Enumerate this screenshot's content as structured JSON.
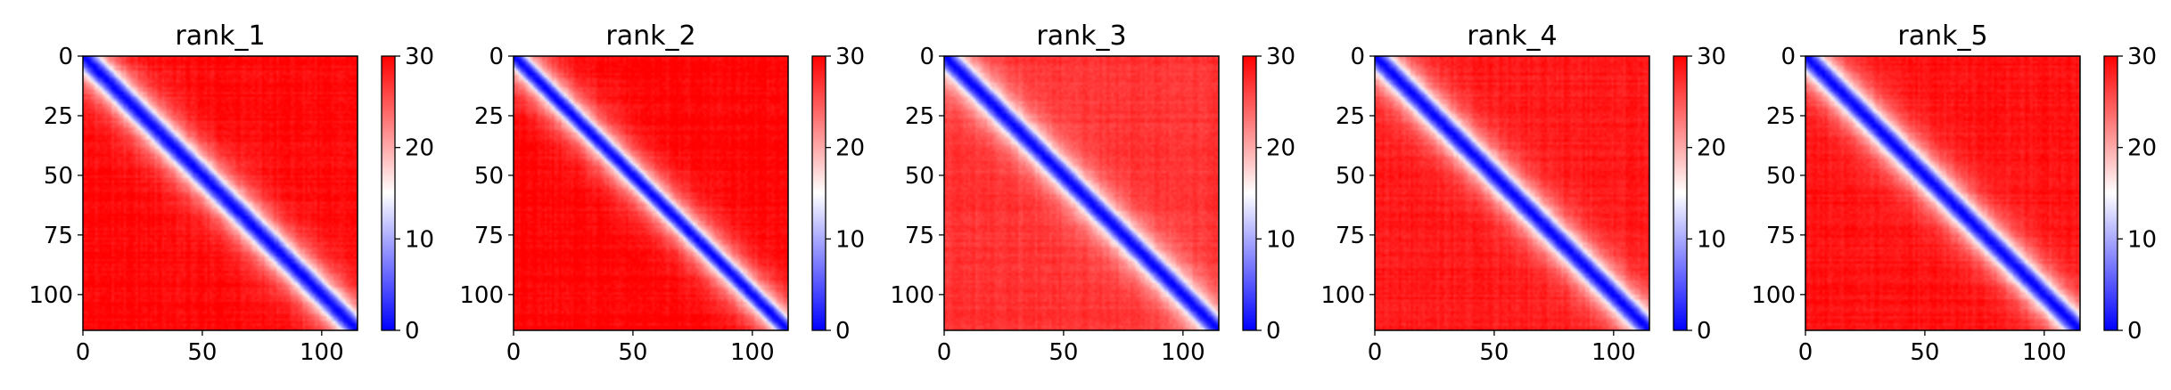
{
  "chart_data": [
    {
      "type": "heatmap",
      "title": "rank_1",
      "matrix_size": 115,
      "x_ticks": [
        0,
        50,
        100
      ],
      "y_ticks": [
        0,
        25,
        50,
        75,
        100
      ],
      "xlim": [
        0,
        115
      ],
      "ylim": [
        115,
        0
      ],
      "colorbar": {
        "range": [
          0,
          30
        ],
        "ticks": [
          0,
          10,
          20,
          30
        ]
      },
      "colormap": [
        "#0000ff",
        "#ffffff",
        "#ff0000"
      ],
      "pattern": {
        "diagonal_value": 0,
        "band_width": 7,
        "near_value": 17,
        "far_value": 29.5
      }
    },
    {
      "type": "heatmap",
      "title": "rank_2",
      "matrix_size": 115,
      "x_ticks": [
        0,
        50,
        100
      ],
      "y_ticks": [
        0,
        25,
        50,
        75,
        100
      ],
      "xlim": [
        0,
        115
      ],
      "ylim": [
        115,
        0
      ],
      "colorbar": {
        "range": [
          0,
          30
        ],
        "ticks": [
          0,
          10,
          20,
          30
        ]
      },
      "colormap": [
        "#0000ff",
        "#ffffff",
        "#ff0000"
      ],
      "pattern": {
        "diagonal_value": 0,
        "band_width": 6,
        "near_value": 18,
        "far_value": 29.8
      }
    },
    {
      "type": "heatmap",
      "title": "rank_3",
      "matrix_size": 115,
      "x_ticks": [
        0,
        50,
        100
      ],
      "y_ticks": [
        0,
        25,
        50,
        75,
        100
      ],
      "xlim": [
        0,
        115
      ],
      "ylim": [
        115,
        0
      ],
      "colorbar": {
        "range": [
          0,
          30
        ],
        "ticks": [
          0,
          10,
          20,
          30
        ]
      },
      "colormap": [
        "#0000ff",
        "#ffffff",
        "#ff0000"
      ],
      "pattern": {
        "diagonal_value": 0,
        "band_width": 7,
        "near_value": 17,
        "far_value": 27
      }
    },
    {
      "type": "heatmap",
      "title": "rank_4",
      "matrix_size": 115,
      "x_ticks": [
        0,
        50,
        100
      ],
      "y_ticks": [
        0,
        25,
        50,
        75,
        100
      ],
      "xlim": [
        0,
        115
      ],
      "ylim": [
        115,
        0
      ],
      "colorbar": {
        "range": [
          0,
          30
        ],
        "ticks": [
          0,
          10,
          20,
          30
        ]
      },
      "colormap": [
        "#0000ff",
        "#ffffff",
        "#ff0000"
      ],
      "pattern": {
        "diagonal_value": 0,
        "band_width": 7,
        "near_value": 17,
        "far_value": 28.5
      }
    },
    {
      "type": "heatmap",
      "title": "rank_5",
      "matrix_size": 115,
      "x_ticks": [
        0,
        50,
        100
      ],
      "y_ticks": [
        0,
        25,
        50,
        75,
        100
      ],
      "xlim": [
        0,
        115
      ],
      "ylim": [
        115,
        0
      ],
      "colorbar": {
        "range": [
          0,
          30
        ],
        "ticks": [
          0,
          10,
          20,
          30
        ]
      },
      "colormap": [
        "#0000ff",
        "#ffffff",
        "#ff0000"
      ],
      "pattern": {
        "diagonal_value": 0,
        "band_width": 7,
        "near_value": 17,
        "far_value": 29
      }
    }
  ]
}
